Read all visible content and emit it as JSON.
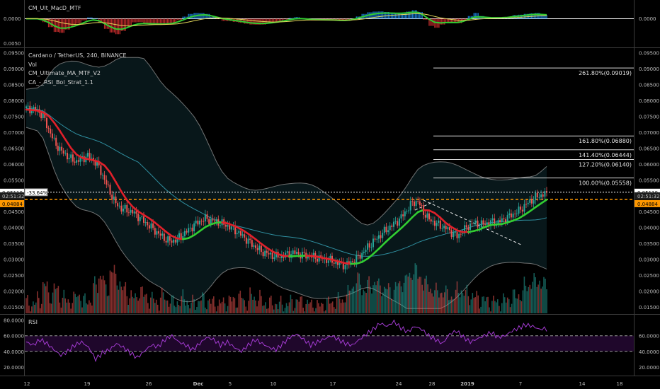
{
  "panes": {
    "macd": {
      "title": "CM_Ult_MacD_MTF",
      "axis_labels": [
        "0.0000",
        "0.0000"
      ],
      "bottom_tick": "0.0050"
    },
    "main": {
      "title": "Cardano / TetherUS, 240, BINANCE",
      "studies": [
        "Vol",
        "CM_Ultimate_MA_MTF_V2",
        "CA_-_RSI_Bol_Strat_1.1"
      ],
      "price_ticks": [
        "0.09500",
        "0.09000",
        "0.08500",
        "0.08000",
        "0.07500",
        "0.07000",
        "0.06500",
        "0.06000",
        "0.05500",
        "0.05000",
        "0.04500",
        "0.04000",
        "0.03500",
        "0.03000",
        "0.02500",
        "0.02000",
        "0.01500"
      ],
      "fib_levels": [
        {
          "label": "261.80%(0.09019)",
          "price": 0.09019
        },
        {
          "label": "161.80%(0.06880)",
          "price": 0.0688
        },
        {
          "label": "141.40%(0.06444)",
          "price": 0.06444
        },
        {
          "label": "127.20%(0.06140)",
          "price": 0.0614
        },
        {
          "label": "100.00%(0.05558)",
          "price": 0.05558
        }
      ],
      "last_price": "0.05110",
      "last_price_value": 0.0511,
      "change_label": "-33.64%",
      "countdown": "02:51:32",
      "orange_level": "0.04884",
      "orange_level_value": 0.04884
    },
    "rsi": {
      "title": "RSI",
      "ticks": [
        "80.0000",
        "60.0000",
        "40.0000",
        "20.0000"
      ],
      "right_ticks": [
        "60.0000",
        "40.0000",
        "20.0000"
      ]
    }
  },
  "time_axis": [
    "12",
    "19",
    "26",
    "Dec",
    "5",
    "10",
    "17",
    "24",
    "28",
    "2019",
    "7",
    "14",
    "18"
  ],
  "colors": {
    "up": "#26a69a",
    "down": "#ef5350",
    "ma_green": "#32cd32",
    "ma_red": "#e0202a",
    "orange": "#ff9800",
    "rsi": "#9c27b0"
  },
  "chart_data": [
    {
      "type": "line",
      "title": "Cardano / TetherUS, 240, BINANCE",
      "x_ticks": [
        "12",
        "19",
        "26",
        "Dec",
        "5",
        "10",
        "17",
        "24",
        "28",
        "2019",
        "7",
        "14",
        "18"
      ],
      "ylim": [
        0.013,
        0.096
      ],
      "series": [
        {
          "values": [
            0.0775,
            0.0772,
            0.0768,
            0.075,
            0.071,
            0.067,
            0.0645,
            0.063,
            0.0615,
            0.0608,
            0.0618,
            0.0625,
            0.0612,
            0.059,
            0.055,
            0.051,
            0.0475,
            0.046,
            0.0455,
            0.0448,
            0.0435,
            0.042,
            0.0405,
            0.039,
            0.0375,
            0.0362,
            0.0356,
            0.0365,
            0.0378,
            0.0392,
            0.0408,
            0.042,
            0.0428,
            0.0422,
            0.0418,
            0.0412,
            0.0405,
            0.0395,
            0.0382,
            0.0368,
            0.0352,
            0.0338,
            0.0325,
            0.0318,
            0.0312,
            0.0308,
            0.0312,
            0.0318,
            0.032,
            0.0315,
            0.0312,
            0.0308,
            0.0305,
            0.0302,
            0.0298,
            0.0292,
            0.0285,
            0.0282,
            0.029,
            0.0302,
            0.0318,
            0.0338,
            0.0355,
            0.0372,
            0.0388,
            0.0402,
            0.0415,
            0.0432,
            0.0455,
            0.0478,
            0.0482,
            0.0448,
            0.0425,
            0.0415,
            0.0405,
            0.0398,
            0.0385,
            0.0372,
            0.0388,
            0.0405,
            0.0415,
            0.0408,
            0.0412,
            0.0418,
            0.0415,
            0.0422,
            0.0432,
            0.0442,
            0.0452,
            0.0468,
            0.0482,
            0.0495,
            0.0502,
            0.0511
          ]
        },
        {
          "name": "Vol",
          "values": [
            0.0162,
            0.0158,
            0.0176,
            0.0215,
            0.0186,
            0.0205,
            0.0178,
            0.0168,
            0.0172,
            0.0188,
            0.0165,
            0.0172,
            0.0215,
            0.0248,
            0.0205,
            0.0262,
            0.0232,
            0.0205,
            0.0188,
            0.0176,
            0.0198,
            0.0182,
            0.0172,
            0.0166,
            0.0182,
            0.0172,
            0.0162,
            0.0168,
            0.0175,
            0.0158,
            0.0165,
            0.0172,
            0.0168,
            0.0162,
            0.0158,
            0.0162,
            0.0168,
            0.0172,
            0.0178,
            0.0165,
            0.0182,
            0.0175,
            0.0165,
            0.0158,
            0.0162,
            0.0155,
            0.0158,
            0.0162,
            0.0168,
            0.0165,
            0.0158,
            0.0155,
            0.0152,
            0.0158,
            0.0162,
            0.0168,
            0.0172,
            0.0188,
            0.0215,
            0.0232,
            0.0205,
            0.0218,
            0.0225,
            0.0212,
            0.0205,
            0.0198,
            0.0215,
            0.0228,
            0.0245,
            0.0265,
            0.0242,
            0.0222,
            0.0205,
            0.0195,
            0.0198,
            0.0188,
            0.0182,
            0.0205,
            0.0192,
            0.0185,
            0.0178,
            0.0172,
            0.0168,
            0.0165,
            0.0162,
            0.0168,
            0.0175,
            0.0182,
            0.0188,
            0.0215,
            0.0225,
            0.0232,
            0.0218,
            0.0222
          ]
        }
      ]
    },
    {
      "type": "line",
      "title": "RSI",
      "ylim": [
        10,
        85
      ],
      "series": [
        {
          "name": "RSI",
          "values": [
            52,
            48,
            55,
            50,
            42,
            35,
            40,
            48,
            52,
            45,
            30,
            38,
            42,
            50,
            45,
            38,
            32,
            40,
            48,
            46,
            55,
            60,
            52,
            48,
            42,
            50,
            58,
            55,
            48,
            52,
            45,
            40,
            48,
            55,
            50,
            45,
            42,
            50,
            58,
            62,
            55,
            48,
            52,
            56,
            60,
            55,
            50,
            48,
            55,
            62,
            68,
            76,
            72,
            78,
            70,
            65,
            72,
            68,
            60,
            55,
            50,
            62,
            66,
            58,
            52,
            56,
            60,
            64,
            58,
            60,
            66,
            70,
            74,
            72,
            68,
            70
          ]
        }
      ]
    }
  ]
}
